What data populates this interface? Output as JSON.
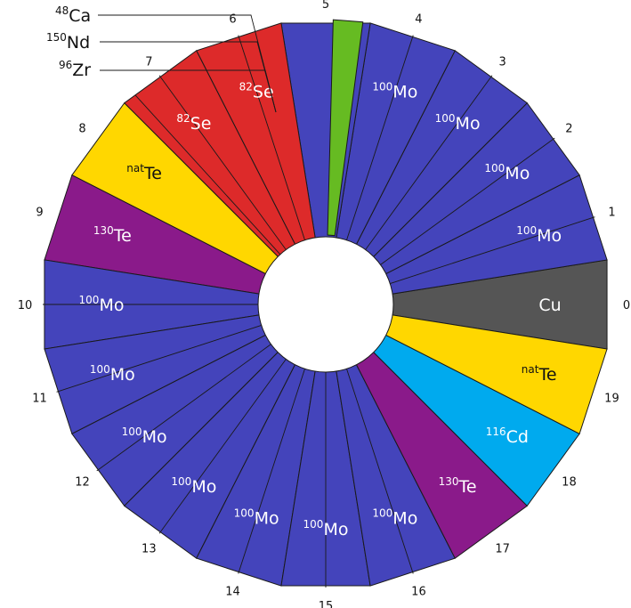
{
  "colors": {
    "Mo": "#4444bb",
    "Se": "#dd2a2a",
    "Te130": "#8a1a8a",
    "TeNat": "#ffd700",
    "Cd": "#00aaee",
    "Cu": "#555555",
    "small": "#66bb22",
    "outline": "#1a1a1a",
    "white": "#ffffff",
    "dark_text": "#111111"
  },
  "sectors": [
    {
      "num": "0",
      "color": "Cu",
      "iso": "Cu",
      "sup": ""
    },
    {
      "num": "1",
      "color": "Mo",
      "iso": "Mo",
      "sup": "100"
    },
    {
      "num": "2",
      "color": "Mo",
      "iso": "Mo",
      "sup": "100"
    },
    {
      "num": "3",
      "color": "Mo",
      "iso": "Mo",
      "sup": "100"
    },
    {
      "num": "4",
      "color": "Mo",
      "iso": "Mo",
      "sup": "100"
    },
    {
      "num": "5",
      "color": "Mo",
      "iso": "",
      "sup": ""
    },
    {
      "num": "6",
      "color": "Se",
      "iso": "Se",
      "sup": "82"
    },
    {
      "num": "7",
      "color": "Se",
      "iso": "Se",
      "sup": "82"
    },
    {
      "num": "8",
      "color": "TeNat",
      "iso": "Te",
      "sup": "nat"
    },
    {
      "num": "9",
      "color": "Te130",
      "iso": "Te",
      "sup": "130"
    },
    {
      "num": "10",
      "color": "Mo",
      "iso": "Mo",
      "sup": "100"
    },
    {
      "num": "11",
      "color": "Mo",
      "iso": "Mo",
      "sup": "100"
    },
    {
      "num": "12",
      "color": "Mo",
      "iso": "Mo",
      "sup": "100"
    },
    {
      "num": "13",
      "color": "Mo",
      "iso": "Mo",
      "sup": "100"
    },
    {
      "num": "14",
      "color": "Mo",
      "iso": "Mo",
      "sup": "100"
    },
    {
      "num": "15",
      "color": "Mo",
      "iso": "Mo",
      "sup": "100"
    },
    {
      "num": "16",
      "color": "Mo",
      "iso": "Mo",
      "sup": "100"
    },
    {
      "num": "17",
      "color": "Te130",
      "iso": "Te",
      "sup": "130"
    },
    {
      "num": "18",
      "color": "Cd",
      "iso": "Cd",
      "sup": "116"
    },
    {
      "num": "19",
      "color": "TeNat",
      "iso": "Te",
      "sup": "nat"
    }
  ],
  "legend": [
    {
      "sup": "48",
      "el": "Ca"
    },
    {
      "sup": "150",
      "el": "Nd"
    },
    {
      "sup": "96",
      "el": "Zr"
    }
  ]
}
